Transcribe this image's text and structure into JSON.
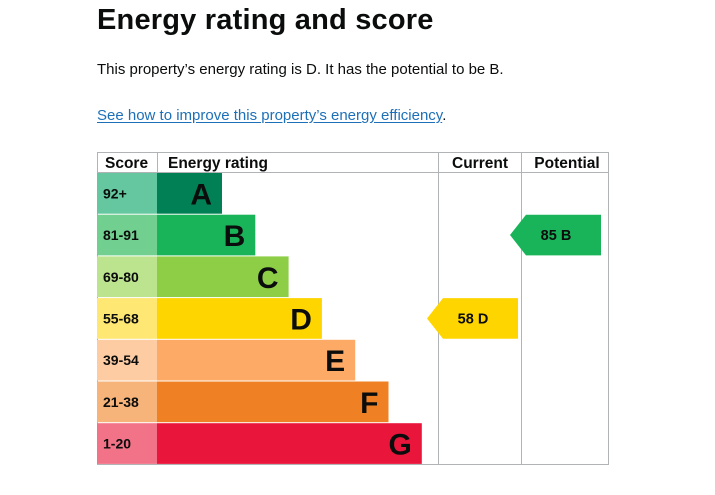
{
  "title": "Energy rating and score",
  "summary": "This property’s energy rating is D. It has the potential to be B.",
  "improve_link": "See how to improve this property’s energy efficiency",
  "improve_link_suffix": ".",
  "chart_data": {
    "type": "table",
    "headers": {
      "score": "Score",
      "rating": "Energy rating",
      "current": "Current",
      "potential": "Potential"
    },
    "bands": [
      {
        "score": "92+",
        "letter": "A",
        "color": "#008054",
        "score_bg": "#64c7a0"
      },
      {
        "score": "81-91",
        "letter": "B",
        "color": "#19b459",
        "score_bg": "#71cf8f"
      },
      {
        "score": "69-80",
        "letter": "C",
        "color": "#8dce46",
        "score_bg": "#bce38e"
      },
      {
        "score": "55-68",
        "letter": "D",
        "color": "#ffd500",
        "score_bg": "#ffe773"
      },
      {
        "score": "39-54",
        "letter": "E",
        "color": "#fcaa65",
        "score_bg": "#fdcca3"
      },
      {
        "score": "21-38",
        "letter": "F",
        "color": "#ef8023",
        "score_bg": "#f6b37a"
      },
      {
        "score": "1-20",
        "letter": "G",
        "color": "#e9153b",
        "score_bg": "#f27388"
      }
    ],
    "current": {
      "value": 58,
      "letter": "D",
      "color": "#ffd500",
      "label": "58 D"
    },
    "potential": {
      "value": 85,
      "letter": "B",
      "color": "#19b459",
      "label": "85 B"
    }
  }
}
